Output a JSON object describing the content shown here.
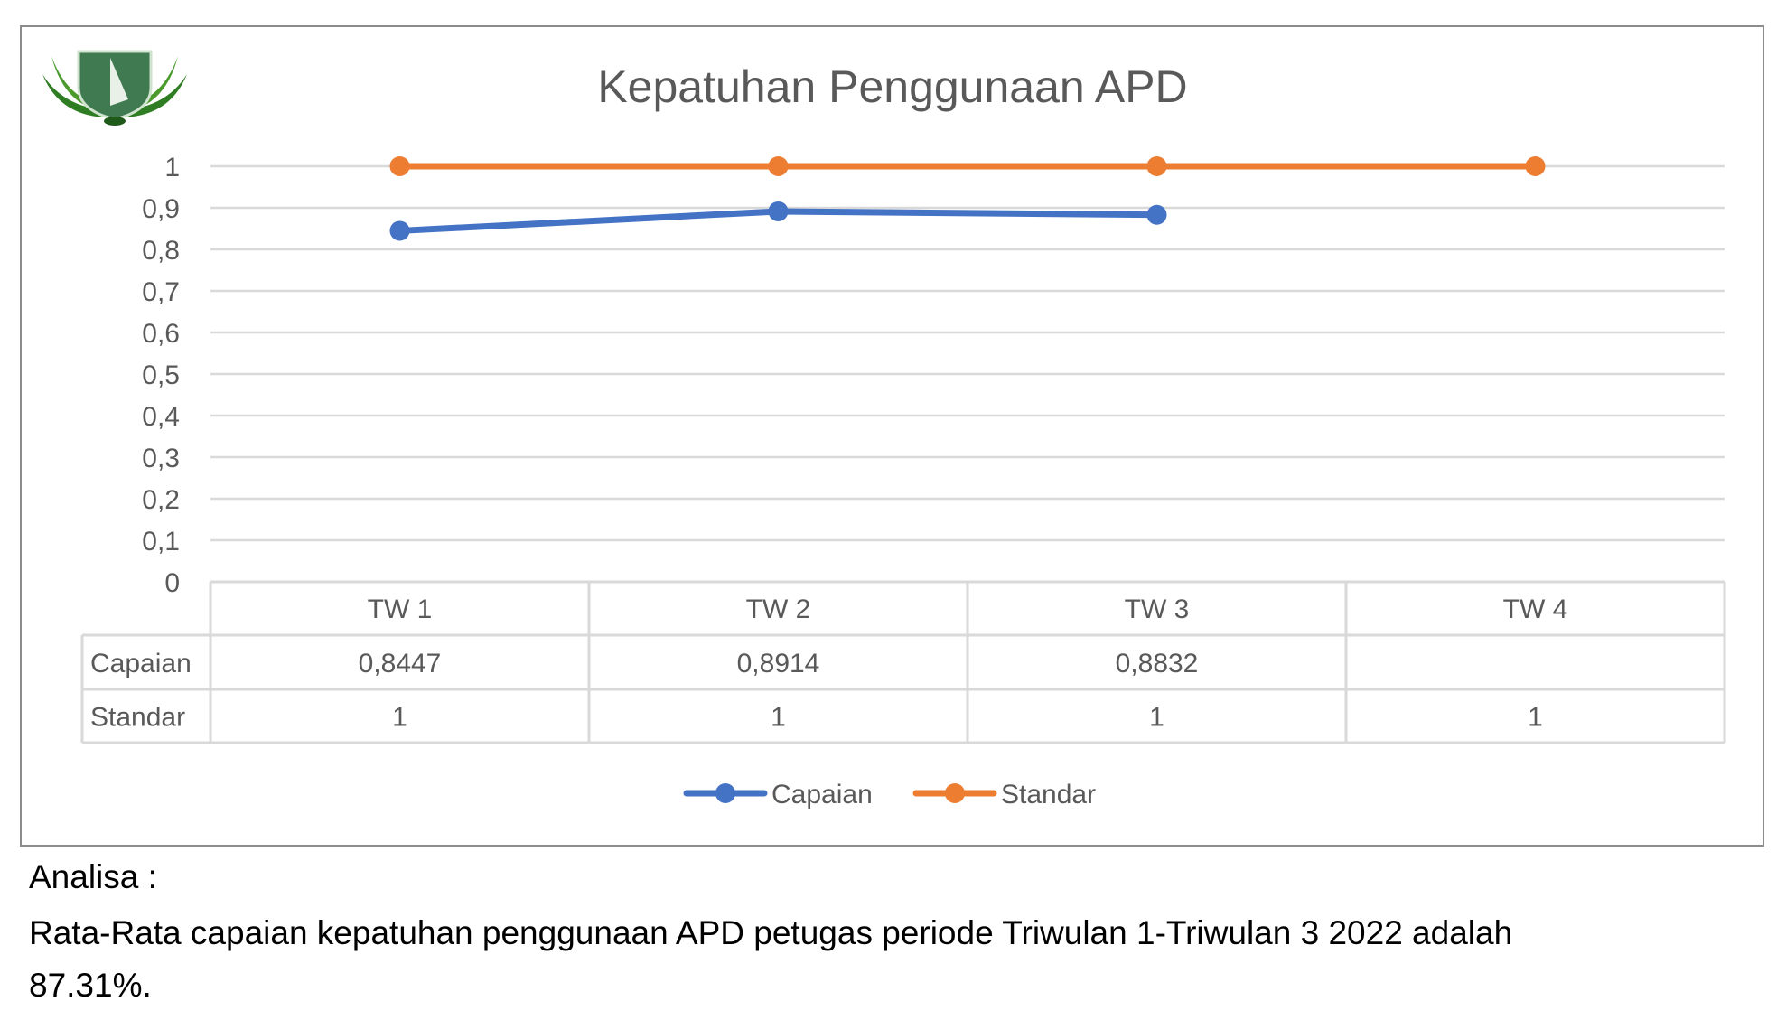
{
  "chart_data": {
    "type": "line",
    "title": "Kepatuhan Penggunaan APD",
    "categories": [
      "TW 1",
      "TW 2",
      "TW 3",
      "TW 4"
    ],
    "series": [
      {
        "name": "Capaian",
        "values": [
          0.8447,
          0.8914,
          0.8832,
          null
        ],
        "labels": [
          "0,8447",
          "0,8914",
          "0,8832",
          ""
        ],
        "color": "#4472C4"
      },
      {
        "name": "Standar",
        "values": [
          1,
          1,
          1,
          1
        ],
        "labels": [
          "1",
          "1",
          "1",
          "1"
        ],
        "color": "#ED7D31"
      }
    ],
    "ylim": [
      0,
      1
    ],
    "yticks": [
      "0",
      "0,1",
      "0,2",
      "0,3",
      "0,4",
      "0,5",
      "0,6",
      "0,7",
      "0,8",
      "0,9",
      "1"
    ],
    "grid": true,
    "legend": "bottom",
    "data_table": true
  },
  "analysis": {
    "heading": "Analisa :",
    "line1": "Rata-Rata capaian kepatuhan penggunaan APD petugas periode Triwulan 1-Triwulan 3 2022 adalah",
    "line2": "87.31%."
  }
}
